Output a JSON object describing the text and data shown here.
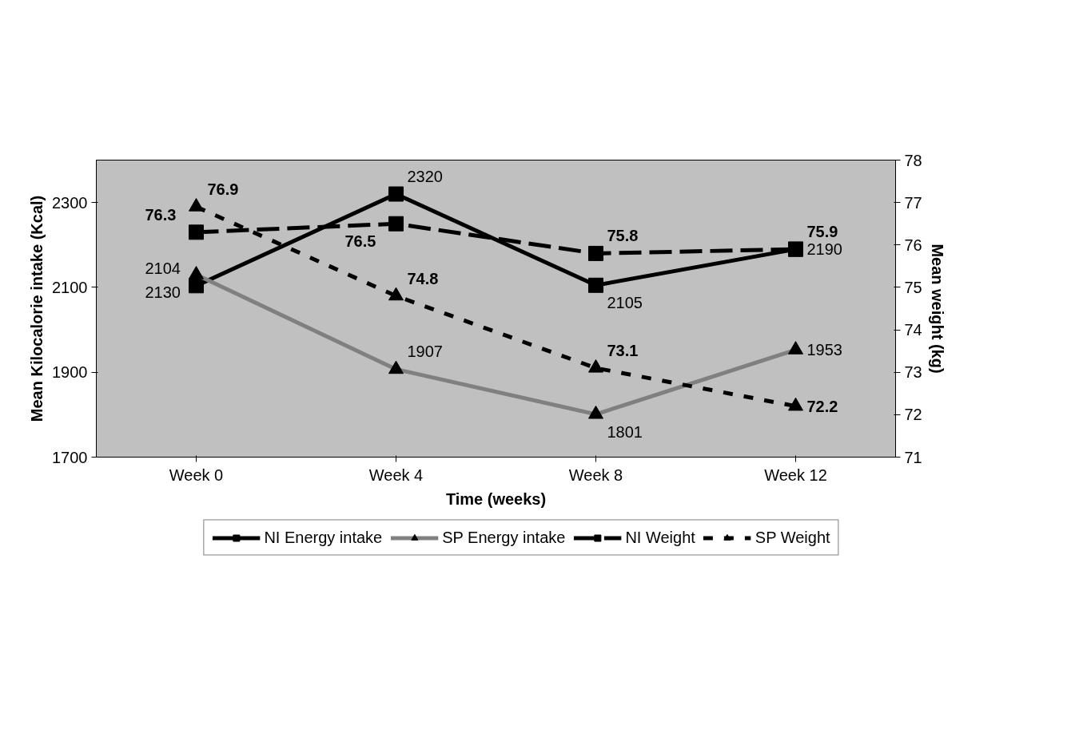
{
  "chart_data": {
    "type": "line",
    "xlabel": "Time (weeks)",
    "ylabel": "Mean Kilocalorie intake (Kcal)",
    "y2label": "Mean weight (kg)",
    "categories": [
      "Week 0",
      "Week 4",
      "Week 8",
      "Week 12"
    ],
    "series": [
      {
        "name": "NI Energy intake",
        "color": "#000000",
        "values": [
          2104,
          2320,
          2105,
          2190
        ],
        "marker": "square",
        "line_style": "solid"
      },
      {
        "name": "SP Energy intake",
        "color": "#808080",
        "values": [
          2130,
          1907,
          1801,
          1953
        ],
        "marker": "triangle",
        "line_style": "solid"
      },
      {
        "name": "NI Weight",
        "color": "#000000",
        "values": [
          76.3,
          76.5,
          75.8,
          75.9
        ],
        "marker": "square",
        "line_style": "dashed",
        "axis": "y2"
      },
      {
        "name": "SP Weight",
        "color": "#000000",
        "values": [
          76.9,
          74.8,
          73.1,
          72.2
        ],
        "marker": "triangle",
        "line_style": "dotted",
        "axis": "y2"
      }
    ],
    "ylim": [
      1700,
      2400
    ],
    "yticks": [
      1700,
      1900,
      2100,
      2300
    ],
    "y2lim": [
      71,
      78
    ],
    "y2ticks": [
      71,
      72,
      73,
      74,
      75,
      76,
      77,
      78
    ],
    "data_labels": true,
    "grid": false,
    "legend": "bottom"
  }
}
